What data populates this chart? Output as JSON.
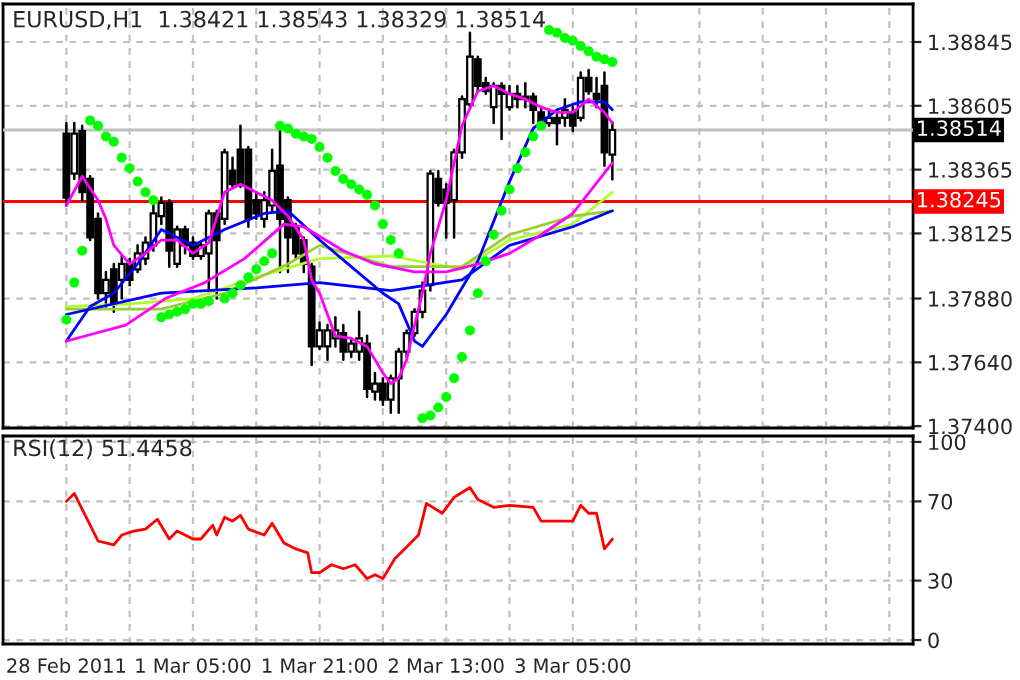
{
  "chart_data": [
    {
      "type": "candlestick",
      "title": "EURUSD,H1  1.38421 1.38543 1.38329 1.38514",
      "x": [
        "2011-02-28T13:00",
        "2011-02-28T14:00",
        "2011-02-28T15:00",
        "2011-02-28T16:00",
        "2011-02-28T17:00",
        "2011-02-28T18:00",
        "2011-02-28T19:00",
        "2011-02-28T20:00",
        "2011-02-28T21:00",
        "2011-02-28T22:00",
        "2011-02-28T23:00",
        "2011-03-01T00:00",
        "2011-03-01T01:00",
        "2011-03-01T02:00",
        "2011-03-01T03:00",
        "2011-03-01T04:00",
        "2011-03-01T05:00",
        "2011-03-01T06:00",
        "2011-03-01T07:00",
        "2011-03-01T08:00",
        "2011-03-01T09:00",
        "2011-03-01T10:00",
        "2011-03-01T11:00",
        "2011-03-01T12:00",
        "2011-03-01T13:00",
        "2011-03-01T14:00",
        "2011-03-01T15:00",
        "2011-03-01T16:00",
        "2011-03-01T17:00",
        "2011-03-01T18:00",
        "2011-03-01T19:00",
        "2011-03-01T20:00",
        "2011-03-01T21:00",
        "2011-03-01T22:00",
        "2011-03-01T23:00",
        "2011-03-02T00:00",
        "2011-03-02T01:00",
        "2011-03-02T02:00",
        "2011-03-02T03:00",
        "2011-03-02T04:00",
        "2011-03-02T05:00",
        "2011-03-02T06:00",
        "2011-03-02T07:00",
        "2011-03-02T08:00",
        "2011-03-02T09:00",
        "2011-03-02T10:00",
        "2011-03-02T11:00",
        "2011-03-02T12:00",
        "2011-03-02T13:00",
        "2011-03-02T14:00",
        "2011-03-02T15:00",
        "2011-03-02T16:00",
        "2011-03-02T17:00",
        "2011-03-02T18:00",
        "2011-03-02T19:00",
        "2011-03-02T20:00",
        "2011-03-02T21:00",
        "2011-03-02T22:00",
        "2011-03-02T23:00",
        "2011-03-03T00:00",
        "2011-03-03T01:00",
        "2011-03-03T02:00",
        "2011-03-03T03:00",
        "2011-03-03T04:00",
        "2011-03-03T05:00",
        "2011-03-03T06:00",
        "2011-03-03T07:00",
        "2011-03-03T08:00",
        "2011-03-03T09:00",
        "2011-03-03T10:00"
      ],
      "ohlc": [
        [
          1.385,
          1.3854,
          1.3823,
          1.3826
        ],
        [
          1.3835,
          1.3854,
          1.3833,
          1.385
        ],
        [
          1.3851,
          1.3853,
          1.3825,
          1.3828
        ],
        [
          1.3833,
          1.3834,
          1.381,
          1.3811
        ],
        [
          1.3818,
          1.382,
          1.3788,
          1.379
        ],
        [
          1.379,
          1.3798,
          1.3785,
          1.3795
        ],
        [
          1.3799,
          1.3801,
          1.3783,
          1.3786
        ],
        [
          1.3795,
          1.3804,
          1.3788,
          1.3801
        ],
        [
          1.3801,
          1.3803,
          1.3793,
          1.3795
        ],
        [
          1.3799,
          1.3808,
          1.3798,
          1.3805
        ],
        [
          1.3803,
          1.3811,
          1.3801,
          1.3809
        ],
        [
          1.3808,
          1.3823,
          1.3806,
          1.382
        ],
        [
          1.3819,
          1.3826,
          1.3816,
          1.3824
        ],
        [
          1.3824,
          1.3825,
          1.38,
          1.3806
        ],
        [
          1.3801,
          1.3815,
          1.38,
          1.3814
        ],
        [
          1.3814,
          1.3815,
          1.3805,
          1.3808
        ],
        [
          1.3809,
          1.3811,
          1.3803,
          1.3804
        ],
        [
          1.3804,
          1.3809,
          1.3803,
          1.3808
        ],
        [
          1.3805,
          1.3821,
          1.379,
          1.382
        ],
        [
          1.382,
          1.3821,
          1.3788,
          1.381
        ],
        [
          1.3818,
          1.3844,
          1.3816,
          1.3843
        ],
        [
          1.3836,
          1.3841,
          1.383,
          1.3831
        ],
        [
          1.3844,
          1.3853,
          1.383,
          1.3831
        ],
        [
          1.3844,
          1.3845,
          1.3815,
          1.3818
        ],
        [
          1.3825,
          1.3828,
          1.3818,
          1.382
        ],
        [
          1.3818,
          1.3828,
          1.3815,
          1.3825
        ],
        [
          1.3823,
          1.3844,
          1.3821,
          1.3836
        ],
        [
          1.3838,
          1.3853,
          1.3798,
          1.3818
        ],
        [
          1.3825,
          1.3826,
          1.3798,
          1.3811
        ],
        [
          1.3815,
          1.3816,
          1.3803,
          1.3805
        ],
        [
          1.381,
          1.3811,
          1.3798,
          1.3801
        ],
        [
          1.38,
          1.3801,
          1.3763,
          1.377
        ],
        [
          1.377,
          1.3779,
          1.3769,
          1.3776
        ],
        [
          1.377,
          1.3778,
          1.3765,
          1.3776
        ],
        [
          1.3773,
          1.3781,
          1.377,
          1.3776
        ],
        [
          1.3775,
          1.3778,
          1.3765,
          1.3768
        ],
        [
          1.3768,
          1.3773,
          1.3766,
          1.3771
        ],
        [
          1.3768,
          1.3783,
          1.3765,
          1.3773
        ],
        [
          1.3771,
          1.3774,
          1.3751,
          1.3754
        ],
        [
          1.3753,
          1.376,
          1.375,
          1.3756
        ],
        [
          1.3756,
          1.3758,
          1.3748,
          1.375
        ],
        [
          1.375,
          1.3759,
          1.3745,
          1.3758
        ],
        [
          1.3758,
          1.3769,
          1.3745,
          1.3768
        ],
        [
          1.3768,
          1.3776,
          1.3766,
          1.3775
        ],
        [
          1.3775,
          1.3784,
          1.3774,
          1.3783
        ],
        [
          1.3783,
          1.3794,
          1.3781,
          1.3791
        ],
        [
          1.3793,
          1.3836,
          1.3791,
          1.3835
        ],
        [
          1.3833,
          1.3836,
          1.3823,
          1.3824
        ],
        [
          1.3829,
          1.3831,
          1.3811,
          1.3824
        ],
        [
          1.3825,
          1.3844,
          1.3811,
          1.3843
        ],
        [
          1.3843,
          1.3864,
          1.3841,
          1.3863
        ],
        [
          1.3861,
          1.3888,
          1.386,
          1.3879
        ],
        [
          1.3878,
          1.3879,
          1.3866,
          1.3868
        ],
        [
          1.3869,
          1.3871,
          1.3865,
          1.3866
        ],
        [
          1.386,
          1.3869,
          1.3854,
          1.3868
        ],
        [
          1.3868,
          1.3869,
          1.3848,
          1.3865
        ],
        [
          1.386,
          1.3868,
          1.3859,
          1.3865
        ],
        [
          1.3865,
          1.3868,
          1.386,
          1.3863
        ],
        [
          1.3864,
          1.3869,
          1.386,
          1.3863
        ],
        [
          1.3864,
          1.3865,
          1.3854,
          1.3859
        ],
        [
          1.3858,
          1.386,
          1.3853,
          1.3854
        ],
        [
          1.3854,
          1.3859,
          1.3853,
          1.3856
        ],
        [
          1.3856,
          1.3859,
          1.3846,
          1.3854
        ],
        [
          1.3856,
          1.3863,
          1.3853,
          1.3859
        ],
        [
          1.3858,
          1.386,
          1.3851,
          1.3853
        ],
        [
          1.3856,
          1.3873,
          1.3855,
          1.3871
        ],
        [
          1.3871,
          1.3874,
          1.3865,
          1.3866
        ],
        [
          1.3865,
          1.3871,
          1.386,
          1.3863
        ],
        [
          1.3868,
          1.3873,
          1.3838,
          1.3843
        ],
        [
          1.38421,
          1.38543,
          1.38329,
          1.38514
        ]
      ],
      "series": [
        {
          "type": "line",
          "color": "#adff2f",
          "x": [
            "2011-02-28T13:00",
            "2011-02-28T21:00",
            "2011-03-01T05:00",
            "2011-03-01T13:00",
            "2011-03-01T21:00",
            "2011-03-02T06:00",
            "2011-03-02T15:00",
            "2011-03-02T21:00",
            "2011-03-03T05:00",
            "2011-03-03T10:00"
          ],
          "values": [
            1.3785,
            1.3786,
            1.3788,
            1.3796,
            1.3803,
            1.3804,
            1.3799,
            1.381,
            1.3816,
            1.3828
          ]
        },
        {
          "type": "line",
          "color": "#9acd32",
          "x": [
            "2011-02-28T13:00",
            "2011-03-01T01:00",
            "2011-03-01T09:00",
            "2011-03-01T17:00",
            "2011-03-01T21:00",
            "2011-03-02T06:00",
            "2011-03-02T15:00",
            "2011-03-02T21:00",
            "2011-03-03T05:00",
            "2011-03-03T10:00"
          ],
          "values": [
            1.3784,
            1.3784,
            1.379,
            1.3801,
            1.3808,
            1.38,
            1.38,
            1.3812,
            1.3819,
            1.3821
          ]
        },
        {
          "type": "line",
          "color": "#0000ff",
          "x": [
            "2011-02-28T13:00",
            "2011-03-01T01:00",
            "2011-03-01T13:00",
            "2011-03-01T21:00",
            "2011-03-02T06:00",
            "2011-03-02T15:00",
            "2011-03-02T21:00",
            "2011-03-03T05:00",
            "2011-03-03T10:00"
          ],
          "values": [
            1.3782,
            1.379,
            1.3792,
            1.3794,
            1.3791,
            1.3795,
            1.3808,
            1.3815,
            1.3821
          ]
        },
        {
          "type": "line",
          "color": "#0000ff",
          "x": [
            "2011-02-28T13:00",
            "2011-02-28T16:00",
            "2011-02-28T19:00",
            "2011-02-28T22:00",
            "2011-03-01T01:00",
            "2011-03-01T05:00",
            "2011-03-01T09:00",
            "2011-03-01T14:00",
            "2011-03-01T17:00",
            "2011-03-01T21:00",
            "2011-03-02T01:00",
            "2011-03-02T05:00",
            "2011-03-02T07:00",
            "2011-03-02T09:00",
            "2011-03-02T10:00",
            "2011-03-02T13:00",
            "2011-03-02T17:00",
            "2011-03-02T21:00",
            "2011-03-03T00:00",
            "2011-03-03T03:00",
            "2011-03-03T06:00",
            "2011-03-03T09:00",
            "2011-03-03T10:00"
          ],
          "values": [
            1.3772,
            1.3785,
            1.379,
            1.3801,
            1.3814,
            1.3808,
            1.3814,
            1.382,
            1.3821,
            1.381,
            1.38,
            1.379,
            1.3786,
            1.3772,
            1.377,
            1.3782,
            1.3802,
            1.3832,
            1.3852,
            1.3859,
            1.3862,
            1.3862,
            1.3859
          ]
        },
        {
          "type": "line",
          "color": "#ff00ff",
          "x": [
            "2011-02-28T13:00",
            "2011-02-28T15:30",
            "2011-02-28T20:30",
            "2011-03-01T01:30",
            "2011-03-01T06:30",
            "2011-03-01T11:30",
            "2011-03-01T16:30",
            "2011-03-01T19:00",
            "2011-03-02T00:00",
            "2011-03-02T04:00",
            "2011-03-02T09:00",
            "2011-03-02T13:00",
            "2011-03-02T17:00",
            "2011-03-02T21:00",
            "2011-03-03T01:00",
            "2011-03-03T05:00",
            "2011-03-03T10:00"
          ],
          "values": [
            1.3772,
            1.3774,
            1.3778,
            1.3788,
            1.3794,
            1.3803,
            1.3816,
            1.3815,
            1.3806,
            1.3801,
            1.3798,
            1.3798,
            1.3801,
            1.3805,
            1.3812,
            1.382,
            1.3839
          ]
        },
        {
          "type": "line",
          "color": "#ff00ff",
          "x": [
            "2011-02-28T13:00",
            "2011-02-28T15:00",
            "2011-02-28T17:00",
            "2011-02-28T18:00",
            "2011-02-28T19:00",
            "2011-02-28T21:00",
            "2011-02-28T23:00",
            "2011-03-01T01:00",
            "2011-03-01T03:00",
            "2011-03-01T05:00",
            "2011-03-01T07:00",
            "2011-03-01T09:00",
            "2011-03-01T11:00",
            "2011-03-01T13:00",
            "2011-03-01T15:00",
            "2011-03-01T17:00",
            "2011-03-01T19:00",
            "2011-03-01T20:00",
            "2011-03-01T21:00",
            "2011-03-01T23:00",
            "2011-03-02T01:00",
            "2011-03-02T03:00",
            "2011-03-02T05:00",
            "2011-03-02T06:00",
            "2011-03-02T07:00",
            "2011-03-02T08:00",
            "2011-03-02T09:00",
            "2011-03-02T10:00",
            "2011-03-02T11:00",
            "2011-03-02T13:00",
            "2011-03-02T15:00",
            "2011-03-02T17:00",
            "2011-03-02T19:00",
            "2011-03-02T21:00",
            "2011-03-02T23:00",
            "2011-03-03T01:00",
            "2011-03-03T03:00",
            "2011-03-03T05:00",
            "2011-03-03T07:00",
            "2011-03-03T09:00",
            "2011-03-03T10:00"
          ],
          "values": [
            1.3823,
            1.3834,
            1.3825,
            1.3818,
            1.3808,
            1.3801,
            1.3805,
            1.381,
            1.381,
            1.3805,
            1.3809,
            1.3828,
            1.3831,
            1.3828,
            1.3825,
            1.3819,
            1.381,
            1.3795,
            1.379,
            1.3774,
            1.3773,
            1.377,
            1.376,
            1.3756,
            1.3758,
            1.3765,
            1.3778,
            1.379,
            1.3805,
            1.3825,
            1.3853,
            1.3866,
            1.3868,
            1.3865,
            1.3863,
            1.386,
            1.3858,
            1.3858,
            1.3863,
            1.3858,
            1.3854
          ]
        },
        {
          "type": "scatter",
          "marker": "circle",
          "color": "#00ff00",
          "x": [
            "2011-02-28T13:00",
            "2011-02-28T14:00",
            "2011-02-28T15:00",
            "2011-02-28T16:00",
            "2011-02-28T17:00",
            "2011-02-28T18:00",
            "2011-02-28T19:00",
            "2011-02-28T20:00",
            "2011-02-28T21:00",
            "2011-02-28T22:00",
            "2011-02-28T23:00",
            "2011-03-01T00:00",
            "2011-03-01T01:00",
            "2011-03-01T02:00",
            "2011-03-01T03:00",
            "2011-03-01T04:00",
            "2011-03-01T05:00",
            "2011-03-01T06:00",
            "2011-03-01T07:00",
            "2011-03-01T09:00",
            "2011-03-01T10:00",
            "2011-03-01T11:00",
            "2011-03-01T12:00",
            "2011-03-01T13:00",
            "2011-03-01T14:00",
            "2011-03-01T15:00",
            "2011-03-01T16:00",
            "2011-03-01T17:00",
            "2011-03-01T18:00",
            "2011-03-01T19:00",
            "2011-03-01T20:00",
            "2011-03-01T21:00",
            "2011-03-01T22:00",
            "2011-03-01T23:00",
            "2011-03-02T00:00",
            "2011-03-02T01:00",
            "2011-03-02T02:00",
            "2011-03-02T03:00",
            "2011-03-02T04:00",
            "2011-03-02T05:00",
            "2011-03-02T06:00",
            "2011-03-02T07:00",
            "2011-03-02T10:00",
            "2011-03-02T11:00",
            "2011-03-02T12:00",
            "2011-03-02T13:00",
            "2011-03-02T14:00",
            "2011-03-02T15:00",
            "2011-03-02T16:00",
            "2011-03-02T17:00",
            "2011-03-02T18:00",
            "2011-03-02T19:00",
            "2011-03-02T20:00",
            "2011-03-02T21:00",
            "2011-03-02T22:00",
            "2011-03-02T23:00",
            "2011-03-03T00:00",
            "2011-03-03T01:00",
            "2011-03-03T02:00",
            "2011-03-03T03:00",
            "2011-03-03T04:00",
            "2011-03-03T05:00",
            "2011-03-03T06:00",
            "2011-03-03T07:00",
            "2011-03-03T08:00",
            "2011-03-03T09:00",
            "2011-03-03T10:00"
          ],
          "values": [
            1.378,
            1.3794,
            1.3806,
            1.3855,
            1.3853,
            1.3849,
            1.3847,
            1.3841,
            1.3837,
            1.3832,
            1.3828,
            1.3825,
            1.3781,
            1.3782,
            1.3783,
            1.3784,
            1.3786,
            1.3786,
            1.3787,
            1.3788,
            1.379,
            1.3793,
            1.3796,
            1.3799,
            1.3802,
            1.3805,
            1.3853,
            1.3852,
            1.385,
            1.3849,
            1.3848,
            1.3845,
            1.3841,
            1.3836,
            1.3833,
            1.3831,
            1.3829,
            1.3827,
            1.3823,
            1.3816,
            1.381,
            1.3805,
            1.3743,
            1.3744,
            1.3747,
            1.3751,
            1.3758,
            1.3766,
            1.3776,
            1.379,
            1.3802,
            1.3812,
            1.3821,
            1.3829,
            1.3837,
            1.3843,
            1.3849,
            1.3853,
            1.3889,
            1.3888,
            1.3886,
            1.3885,
            1.3883,
            1.3881,
            1.3879,
            1.3878,
            1.3877
          ]
        }
      ],
      "xlim": [
        "2011-02-28T05:00",
        "2011-03-05T00:00"
      ],
      "xticks": [
        {
          "value": "2011-02-28T13:00",
          "label": null
        },
        {
          "value": "2011-02-28T21:00",
          "label": null
        },
        {
          "value": "2011-03-01T05:00",
          "label": null
        },
        {
          "value": "2011-03-01T13:00",
          "label": null
        },
        {
          "value": "2011-03-01T21:00",
          "label": null
        },
        {
          "value": "2011-03-02T05:00",
          "label": null
        },
        {
          "value": "2011-03-02T13:00",
          "label": null
        },
        {
          "value": "2011-03-02T21:00",
          "label": null
        },
        {
          "value": "2011-03-03T05:00",
          "label": null
        },
        {
          "value": "2011-03-03T13:00",
          "label": null
        },
        {
          "value": "2011-03-03T21:00",
          "label": null
        },
        {
          "value": "2011-03-04T05:00",
          "label": null
        },
        {
          "value": "2011-03-04T13:00",
          "label": null
        },
        {
          "value": "2011-03-04T21:00",
          "label": null
        }
      ],
      "ylim": [
        1.37393,
        1.38988
      ],
      "yticks": [
        {
          "value": 1.374,
          "label": "1.37400"
        },
        {
          "value": 1.3764,
          "label": "1.37640"
        },
        {
          "value": 1.3788,
          "label": "1.37880"
        },
        {
          "value": 1.38125,
          "label": "1.38125"
        },
        {
          "value": 1.38365,
          "label": "1.38365"
        },
        {
          "value": 1.38605,
          "label": "1.38605"
        },
        {
          "value": 1.38845,
          "label": "1.38845"
        }
      ],
      "ref_lines": [
        {
          "axis": "y",
          "value": 1.38514,
          "label": "1.38514",
          "color": "#c0c0c0"
        },
        {
          "axis": "y",
          "value": 1.38245,
          "label": "1.38245",
          "color": "#ff0000"
        }
      ],
      "grid": true,
      "tick_labels": "y"
    },
    {
      "type": "line",
      "title": "RSI(12) 51.4458",
      "series": [
        {
          "color": "#ff0000",
          "x": [
            "2011-02-28T13:00",
            "2011-02-28T14:00",
            "2011-02-28T15:30",
            "2011-02-28T17:00",
            "2011-02-28T19:00",
            "2011-02-28T20:00",
            "2011-02-28T21:30",
            "2011-02-28T23:00",
            "2011-03-01T00:30",
            "2011-03-01T02:00",
            "2011-03-01T03:00",
            "2011-03-01T05:00",
            "2011-03-01T06:00",
            "2011-03-01T07:30",
            "2011-03-01T08:00",
            "2011-03-01T09:00",
            "2011-03-01T10:00",
            "2011-03-01T11:00",
            "2011-03-01T12:00",
            "2011-03-01T14:00",
            "2011-03-01T15:00",
            "2011-03-01T16:30",
            "2011-03-01T18:00",
            "2011-03-01T19:30",
            "2011-03-01T20:00",
            "2011-03-01T21:00",
            "2011-03-01T22:30",
            "2011-03-02T00:00",
            "2011-03-02T01:30",
            "2011-03-02T03:00",
            "2011-03-02T04:00",
            "2011-03-02T05:00",
            "2011-03-02T06:30",
            "2011-03-02T08:00",
            "2011-03-02T09:30",
            "2011-03-02T10:30",
            "2011-03-02T12:30",
            "2011-03-02T14:00",
            "2011-03-02T16:00",
            "2011-03-02T17:00",
            "2011-03-02T19:00",
            "2011-03-02T21:00",
            "2011-03-03T00:00",
            "2011-03-03T01:00",
            "2011-03-03T05:00",
            "2011-03-03T06:00",
            "2011-03-03T07:00",
            "2011-03-03T08:00",
            "2011-03-03T09:00",
            "2011-03-03T10:00"
          ],
          "values": [
            70,
            74,
            62,
            50,
            48,
            53,
            55,
            56,
            61,
            51,
            55,
            51,
            51,
            58,
            53,
            62,
            60,
            63,
            56,
            53,
            59,
            49,
            46,
            44,
            34,
            34,
            38,
            36,
            38,
            31,
            33,
            31,
            41,
            47,
            53,
            69,
            64,
            72,
            77,
            71,
            67,
            68,
            67,
            60,
            60,
            68,
            64,
            64,
            46,
            51
          ]
        }
      ],
      "xlim": [
        "2011-02-28T05:00",
        "2011-03-05T00:00"
      ],
      "xticks": [
        {
          "value": "2011-02-28T13:00",
          "label": "28 Feb 2011"
        },
        {
          "value": "2011-02-28T21:00",
          "label": null
        },
        {
          "value": "2011-03-01T05:00",
          "label": "1 Mar 05:00"
        },
        {
          "value": "2011-03-01T13:00",
          "label": null
        },
        {
          "value": "2011-03-01T21:00",
          "label": "1 Mar 21:00"
        },
        {
          "value": "2011-03-02T05:00",
          "label": null
        },
        {
          "value": "2011-03-02T13:00",
          "label": "2 Mar 13:00"
        },
        {
          "value": "2011-03-02T21:00",
          "label": null
        },
        {
          "value": "2011-03-03T05:00",
          "label": "3 Mar 05:00"
        },
        {
          "value": "2011-03-03T13:00",
          "label": null
        },
        {
          "value": "2011-03-03T21:00",
          "label": null
        },
        {
          "value": "2011-03-04T05:00",
          "label": null
        },
        {
          "value": "2011-03-04T13:00",
          "label": null
        },
        {
          "value": "2011-03-04T21:00",
          "label": null
        }
      ],
      "ylim": [
        -2,
        103
      ],
      "yticks": [
        0,
        30,
        70,
        100
      ],
      "grid": true
    }
  ]
}
